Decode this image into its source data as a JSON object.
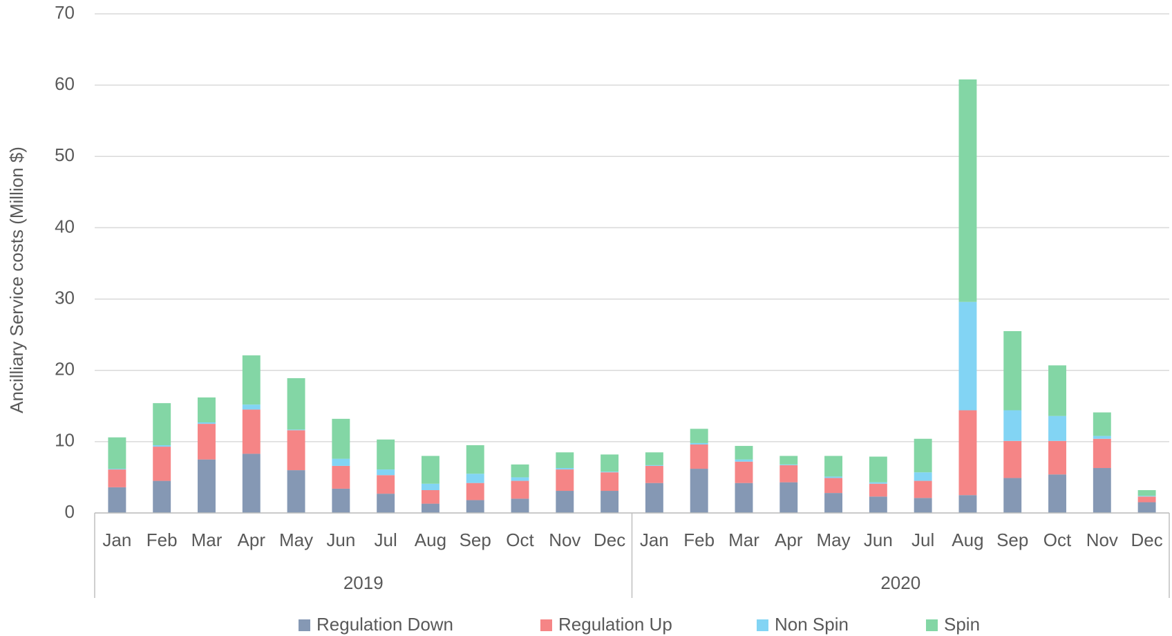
{
  "chart_data": {
    "type": "stacked_bar",
    "y_label": "Ancilliary Service costs (Million $)",
    "groups": [
      {
        "name": "2019",
        "categories": [
          "Jan",
          "Feb",
          "Mar",
          "Apr",
          "May",
          "Jun",
          "Jul",
          "Aug",
          "Sep",
          "Oct",
          "Nov",
          "Dec"
        ]
      },
      {
        "name": "2020",
        "categories": [
          "Jan",
          "Feb",
          "Mar",
          "Apr",
          "May",
          "Jun",
          "Jul",
          "Aug",
          "Sep",
          "Oct",
          "Nov",
          "Dec"
        ]
      }
    ],
    "series": [
      {
        "name": "Regulation Down",
        "color": "#8598b4",
        "values": [
          3.6,
          4.5,
          7.5,
          8.3,
          6.0,
          3.4,
          2.7,
          1.3,
          1.8,
          2.0,
          3.1,
          3.1,
          4.2,
          6.2,
          4.2,
          4.3,
          2.8,
          2.3,
          2.1,
          2.5,
          4.9,
          5.4,
          6.3,
          1.5
        ]
      },
      {
        "name": "Regulation Up",
        "color": "#f58586",
        "values": [
          2.5,
          4.8,
          5.0,
          6.2,
          5.6,
          3.2,
          2.6,
          1.9,
          2.4,
          2.5,
          3.0,
          2.6,
          2.4,
          3.4,
          3.0,
          2.4,
          2.1,
          1.8,
          2.4,
          11.9,
          5.2,
          4.7,
          4.1,
          0.8
        ]
      },
      {
        "name": "Non Spin",
        "color": "#82d4f4",
        "values": [
          0.1,
          0.2,
          0.2,
          0.7,
          0.1,
          1.0,
          0.8,
          0.9,
          1.3,
          0.5,
          0.2,
          0.1,
          0.1,
          0.2,
          0.3,
          0.1,
          0.2,
          0.2,
          1.2,
          15.2,
          4.3,
          3.5,
          0.4,
          0.1
        ]
      },
      {
        "name": "Spin",
        "color": "#83d6a5",
        "values": [
          4.4,
          5.9,
          3.5,
          6.9,
          7.2,
          5.6,
          4.2,
          3.9,
          4.0,
          1.8,
          2.2,
          2.4,
          1.8,
          2.0,
          1.9,
          1.2,
          2.9,
          3.6,
          4.7,
          31.2,
          11.1,
          7.1,
          3.3,
          0.8
        ]
      }
    ],
    "ylim": [
      0,
      70
    ],
    "yticks": [
      0,
      10,
      20,
      30,
      40,
      50,
      60,
      70
    ],
    "grid": true,
    "legend": "bottom"
  }
}
